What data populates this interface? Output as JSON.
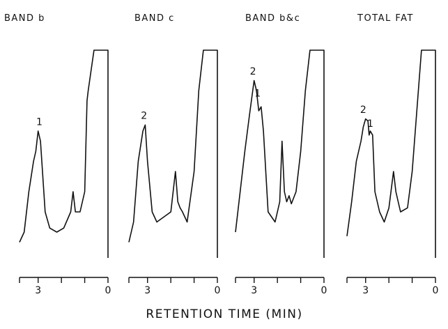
{
  "chart_data": {
    "type": "line",
    "xlabel": "RETENTION TIME (MIN)",
    "xtick_labels": [
      "3",
      "0"
    ],
    "panels": [
      {
        "title": "BAND b",
        "series": [
          {
            "x": [
              3.8,
              3.6,
              3.4,
              3.2,
              3.1,
              3.0,
              2.9,
              2.7,
              2.5,
              2.2,
              1.9,
              1.6,
              1.5,
              1.4,
              1.2,
              1.0,
              0.9,
              0.85,
              0.6,
              0.55,
              0.0
            ],
            "y": [
              5,
              10,
              30,
              45,
              50,
              60,
              55,
              20,
              12,
              10,
              12,
              20,
              30,
              20,
              20,
              30,
              75,
              80,
              100,
              100,
              100
            ]
          }
        ],
        "annotations": [
          {
            "text": "1",
            "x": 2.95,
            "y": 63
          }
        ]
      },
      {
        "title": "BAND c",
        "series": [
          {
            "x": [
              3.8,
              3.6,
              3.4,
              3.2,
              3.1,
              3.0,
              2.8,
              2.6,
              2.0,
              1.8,
              1.7,
              1.6,
              1.5,
              1.3,
              1.0,
              0.8,
              0.6,
              0.5,
              0.0
            ],
            "y": [
              5,
              15,
              45,
              60,
              63,
              45,
              20,
              15,
              20,
              40,
              25,
              22,
              20,
              15,
              40,
              80,
              100,
              100,
              100
            ]
          }
        ],
        "annotations": [
          {
            "text": "2",
            "x": 3.15,
            "y": 66
          }
        ]
      },
      {
        "title": "BAND b&c",
        "series": [
          {
            "x": [
              3.8,
              3.6,
              3.4,
              3.2,
              3.0,
              2.9,
              2.8,
              2.7,
              2.6,
              2.4,
              2.1,
              1.9,
              1.8,
              1.7,
              1.6,
              1.5,
              1.4,
              1.2,
              1.0,
              0.8,
              0.6,
              0.5,
              0.0
            ],
            "y": [
              10,
              30,
              50,
              68,
              85,
              80,
              70,
              72,
              60,
              20,
              15,
              25,
              55,
              30,
              25,
              28,
              24,
              30,
              50,
              80,
              100,
              100,
              100
            ]
          }
        ],
        "annotations": [
          {
            "text": "2",
            "x": 3.05,
            "y": 88
          },
          {
            "text": "1",
            "x": 2.85,
            "y": 77
          }
        ]
      },
      {
        "title": "TOTAL FAT",
        "series": [
          {
            "x": [
              3.8,
              3.6,
              3.4,
              3.2,
              3.1,
              3.0,
              2.9,
              2.85,
              2.8,
              2.7,
              2.6,
              2.4,
              2.2,
              2.0,
              1.8,
              1.7,
              1.6,
              1.5,
              1.2,
              1.0,
              0.6,
              0.5,
              0.0
            ],
            "y": [
              8,
              25,
              45,
              55,
              62,
              66,
              65,
              58,
              60,
              58,
              30,
              20,
              15,
              22,
              40,
              30,
              25,
              20,
              22,
              40,
              100,
              100,
              100
            ]
          }
        ],
        "annotations": [
          {
            "text": "2",
            "x": 3.1,
            "y": 69
          },
          {
            "text": "1",
            "x": 2.8,
            "y": 62
          }
        ]
      }
    ]
  }
}
